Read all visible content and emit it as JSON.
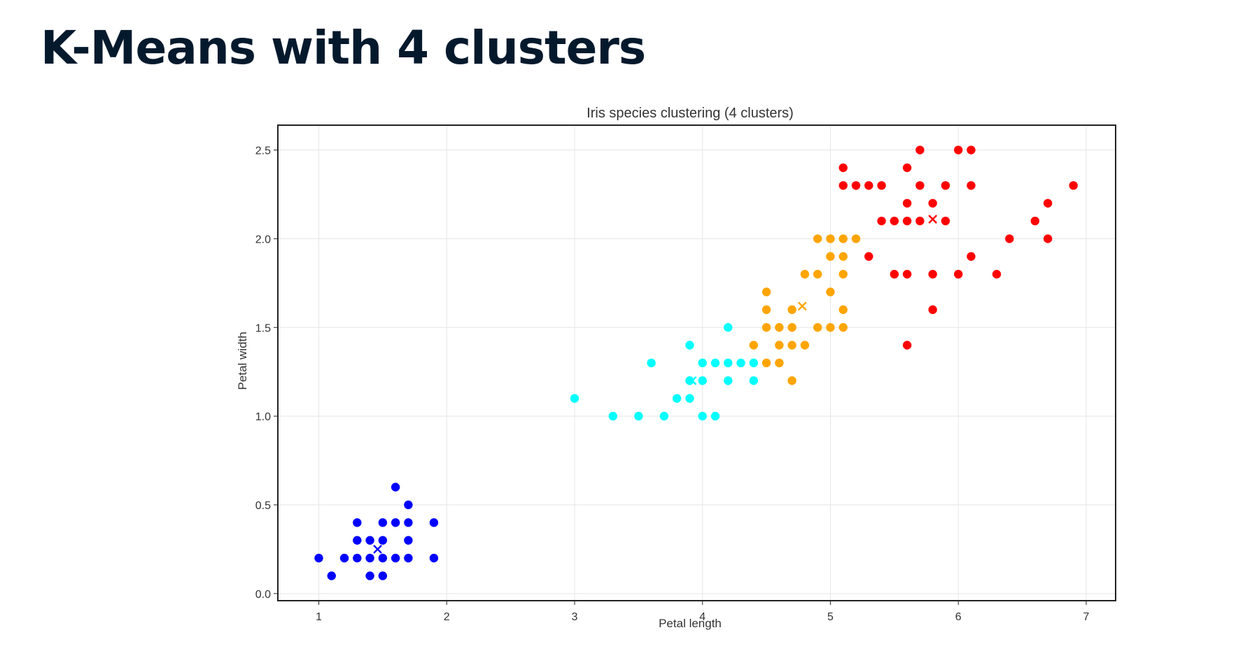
{
  "slide": {
    "title": "K-Means with 4 clusters"
  },
  "colors": {
    "title": "#05192d",
    "cluster_1": "#0000ff",
    "cluster_2": "#00ffff",
    "cluster_3": "#ffa500",
    "cluster_4": "#ff0000",
    "grid": "#e6e6e6",
    "axes": "#222222"
  },
  "chart_data": {
    "type": "scatter",
    "title": "Iris species clustering (4 clusters)",
    "xlabel": "Petal length",
    "ylabel": "Petal width",
    "xlim": [
      0.68,
      7.23
    ],
    "ylim": [
      -0.04,
      2.64
    ],
    "xticks": [
      1,
      2,
      3,
      4,
      5,
      6,
      7
    ],
    "yticks": [
      "0.0",
      "0.5",
      "1.0",
      "1.5",
      "2.0",
      "2.5"
    ],
    "grid": true,
    "legend": "none",
    "series": [
      {
        "color": "#0000ff",
        "x": [
          1.0,
          1.1,
          1.2,
          1.3,
          1.4,
          1.5,
          1.6,
          1.7,
          1.9,
          1.4,
          1.5,
          1.3,
          1.4,
          1.5,
          1.7,
          1.3,
          1.5,
          1.6,
          1.7,
          1.9,
          1.6,
          1.7
        ],
        "y": [
          0.2,
          0.1,
          0.2,
          0.2,
          0.2,
          0.2,
          0.2,
          0.2,
          0.2,
          0.1,
          0.1,
          0.3,
          0.3,
          0.3,
          0.3,
          0.4,
          0.4,
          0.4,
          0.4,
          0.4,
          0.6,
          0.5
        ],
        "centroid": [
          1.46,
          0.25
        ]
      },
      {
        "color": "#00ffff",
        "x": [
          3.0,
          3.3,
          3.5,
          3.7,
          4.0,
          4.1,
          3.8,
          3.9,
          3.9,
          4.0,
          4.2,
          4.4,
          4.0,
          4.1,
          4.2,
          4.3,
          4.4,
          3.6,
          3.9,
          4.2
        ],
        "y": [
          1.1,
          1.0,
          1.0,
          1.0,
          1.0,
          1.0,
          1.1,
          1.1,
          1.2,
          1.2,
          1.2,
          1.2,
          1.3,
          1.3,
          1.3,
          1.3,
          1.3,
          1.3,
          1.4,
          1.5
        ],
        "centroid": [
          3.92,
          1.2
        ]
      },
      {
        "color": "#ffa500",
        "x": [
          4.7,
          4.5,
          4.6,
          4.4,
          4.6,
          4.7,
          4.8,
          4.5,
          4.6,
          4.7,
          4.9,
          5.0,
          5.1,
          4.5,
          4.7,
          5.1,
          4.5,
          5.0,
          4.8,
          4.9,
          5.1,
          5.0,
          5.1,
          4.9,
          5.0,
          5.1,
          5.2
        ],
        "y": [
          1.2,
          1.3,
          1.3,
          1.4,
          1.4,
          1.4,
          1.4,
          1.5,
          1.5,
          1.5,
          1.5,
          1.5,
          1.5,
          1.6,
          1.6,
          1.6,
          1.7,
          1.7,
          1.8,
          1.8,
          1.8,
          1.9,
          1.9,
          2.0,
          2.0,
          2.0,
          2.0
        ],
        "centroid": [
          4.78,
          1.62
        ]
      },
      {
        "color": "#ff0000",
        "x": [
          5.6,
          5.8,
          5.3,
          5.5,
          5.6,
          5.8,
          6.0,
          6.3,
          6.1,
          6.4,
          6.6,
          6.7,
          5.4,
          5.5,
          5.6,
          5.7,
          5.9,
          5.6,
          5.8,
          6.7,
          5.1,
          5.2,
          5.3,
          5.4,
          5.7,
          5.9,
          6.1,
          6.9,
          5.1,
          5.6,
          5.7,
          6.0,
          6.1
        ],
        "y": [
          1.4,
          1.6,
          1.9,
          1.8,
          1.8,
          1.8,
          1.8,
          1.8,
          1.9,
          2.0,
          2.1,
          2.0,
          2.1,
          2.1,
          2.1,
          2.1,
          2.1,
          2.2,
          2.2,
          2.2,
          2.3,
          2.3,
          2.3,
          2.3,
          2.3,
          2.3,
          2.3,
          2.3,
          2.4,
          2.4,
          2.5,
          2.5,
          2.5
        ],
        "centroid": [
          5.8,
          2.11
        ]
      }
    ]
  }
}
